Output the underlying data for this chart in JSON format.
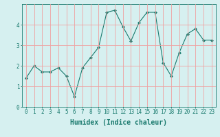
{
  "x": [
    0,
    1,
    2,
    3,
    4,
    5,
    6,
    7,
    8,
    9,
    10,
    11,
    12,
    13,
    14,
    15,
    16,
    17,
    18,
    19,
    20,
    21,
    22,
    23
  ],
  "y": [
    1.4,
    2.0,
    1.7,
    1.7,
    1.9,
    1.5,
    0.5,
    1.9,
    2.4,
    2.9,
    4.6,
    4.7,
    3.9,
    3.2,
    4.1,
    4.6,
    4.6,
    2.15,
    1.5,
    2.65,
    3.55,
    3.8,
    3.25,
    3.25
  ],
  "xlabel": "Humidex (Indice chaleur)",
  "ylim": [
    0,
    5
  ],
  "xlim": [
    -0.5,
    23.5
  ],
  "yticks": [
    0,
    1,
    2,
    3,
    4
  ],
  "xticks": [
    0,
    1,
    2,
    3,
    4,
    5,
    6,
    7,
    8,
    9,
    10,
    11,
    12,
    13,
    14,
    15,
    16,
    17,
    18,
    19,
    20,
    21,
    22,
    23
  ],
  "line_color": "#1a7a6e",
  "marker": "D",
  "marker_size": 2,
  "bg_color": "#d6f0f0",
  "grid_color": "#f0a0a0",
  "tick_color": "#1a7a6e",
  "label_color": "#1a7a6e",
  "xlabel_fontsize": 7,
  "tick_fontsize": 5.5,
  "linewidth": 0.8
}
